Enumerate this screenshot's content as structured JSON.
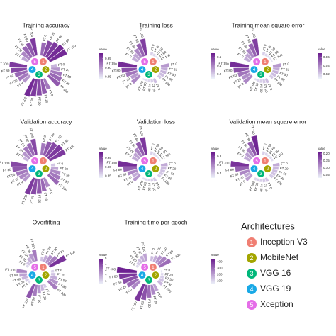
{
  "chart_data": [
    {
      "type": "radial_bar",
      "title": "Training accuracy",
      "colorbar_label": "value",
      "clim": [
        0.84,
        0.98
      ],
      "cticks": [
        {
          "value": 0.85,
          "label": "0.85"
        },
        {
          "value": 0.9,
          "label": "0.90"
        },
        {
          "value": 0.95,
          "label": "0.95"
        }
      ],
      "categories": [
        "FT 0",
        "FT 20",
        "FT 50",
        "FT 80",
        "FT 100"
      ],
      "series": [
        {
          "values": [
            0.93,
            0.95,
            0.96,
            0.97,
            0.97
          ]
        },
        {
          "values": [
            0.88,
            0.9,
            0.92,
            0.93,
            0.94
          ]
        },
        {
          "values": [
            0.92,
            0.94,
            0.95,
            0.96,
            0.97
          ]
        },
        {
          "values": [
            0.9,
            0.92,
            0.93,
            0.95,
            0.96
          ]
        },
        {
          "values": [
            0.89,
            0.91,
            0.93,
            0.94,
            0.96
          ]
        }
      ]
    },
    {
      "type": "radial_bar",
      "title": "Training loss",
      "colorbar_label": "value",
      "clim": [
        0.1,
        0.7
      ],
      "cticks": [
        0.2,
        0.4,
        0.6
      ],
      "categories": [
        "FT 0",
        "FT 20",
        "FT 50",
        "FT 80",
        "FT 100"
      ],
      "series": [
        {
          "values": [
            0.2,
            0.18,
            0.15,
            0.14,
            0.13
          ]
        },
        {
          "values": [
            0.35,
            0.3,
            0.28,
            0.25,
            0.22
          ]
        },
        {
          "values": [
            0.25,
            0.2,
            0.18,
            0.16,
            0.15
          ]
        },
        {
          "values": [
            0.4,
            0.35,
            0.45,
            0.55,
            0.65
          ]
        },
        {
          "values": [
            0.3,
            0.32,
            0.4,
            0.5,
            0.6
          ]
        }
      ]
    },
    {
      "type": "radial_bar",
      "title": "Training mean square error",
      "colorbar_label": "value",
      "clim": [
        0.01,
        0.07
      ],
      "cticks": [
        0.02,
        0.04,
        0.06
      ],
      "categories": [
        "FT 0",
        "FT 20",
        "FT 50",
        "FT 80",
        "FT 100"
      ],
      "series": [
        {
          "values": [
            0.02,
            0.018,
            0.016,
            0.015,
            0.014
          ]
        },
        {
          "values": [
            0.035,
            0.03,
            0.028,
            0.025,
            0.022
          ]
        },
        {
          "values": [
            0.025,
            0.022,
            0.02,
            0.018,
            0.016
          ]
        },
        {
          "values": [
            0.04,
            0.038,
            0.045,
            0.055,
            0.065
          ]
        },
        {
          "values": [
            0.03,
            0.032,
            0.04,
            0.05,
            0.06
          ]
        }
      ]
    },
    {
      "type": "radial_bar",
      "title": "Validation accuracy",
      "colorbar_label": "value",
      "clim": [
        0.84,
        0.98
      ],
      "cticks": [
        {
          "value": 0.85,
          "label": "0.85"
        },
        {
          "value": 0.9,
          "label": "0.90"
        },
        {
          "value": 0.95,
          "label": "0.95"
        }
      ],
      "categories": [
        "FT 0",
        "FT 20",
        "FT 50",
        "FT 80",
        "FT 100"
      ],
      "series": [
        {
          "values": [
            0.92,
            0.94,
            0.95,
            0.96,
            0.96
          ]
        },
        {
          "values": [
            0.87,
            0.89,
            0.91,
            0.92,
            0.93
          ]
        },
        {
          "values": [
            0.91,
            0.93,
            0.94,
            0.95,
            0.96
          ]
        },
        {
          "values": [
            0.9,
            0.91,
            0.92,
            0.94,
            0.95
          ]
        },
        {
          "values": [
            0.88,
            0.9,
            0.92,
            0.93,
            0.95
          ]
        }
      ]
    },
    {
      "type": "radial_bar",
      "title": "Validation loss",
      "colorbar_label": "value",
      "clim": [
        0.3,
        0.9
      ],
      "cticks": [
        0.4,
        0.6,
        0.8
      ],
      "categories": [
        "FT 0",
        "FT 20",
        "FT 50",
        "FT 80",
        "FT 100"
      ],
      "series": [
        {
          "values": [
            0.4,
            0.38,
            0.36,
            0.35,
            0.34
          ]
        },
        {
          "values": [
            0.5,
            0.46,
            0.44,
            0.42,
            0.4
          ]
        },
        {
          "values": [
            0.42,
            0.4,
            0.38,
            0.37,
            0.36
          ]
        },
        {
          "values": [
            0.55,
            0.5,
            0.6,
            0.7,
            0.85
          ]
        },
        {
          "values": [
            0.5,
            0.52,
            0.6,
            0.72,
            0.82
          ]
        }
      ]
    },
    {
      "type": "radial_bar",
      "title": "Validation mean square error",
      "colorbar_label": "value",
      "clim": [
        0.03,
        0.21
      ],
      "cticks": [
        0.05,
        {
          "value": 0.1,
          "label": "0.10"
        },
        0.15,
        {
          "value": 0.2,
          "label": "0.20"
        }
      ],
      "categories": [
        "FT 0",
        "FT 20",
        "FT 50",
        "FT 80",
        "FT 100"
      ],
      "series": [
        {
          "values": [
            0.06,
            0.055,
            0.05,
            0.05,
            0.048
          ]
        },
        {
          "values": [
            0.09,
            0.08,
            0.075,
            0.07,
            0.065
          ]
        },
        {
          "values": [
            0.07,
            0.065,
            0.06,
            0.058,
            0.055
          ]
        },
        {
          "values": [
            0.1,
            0.09,
            0.12,
            0.15,
            0.19
          ]
        },
        {
          "values": [
            0.09,
            0.1,
            0.12,
            0.16,
            0.2
          ]
        }
      ]
    },
    {
      "type": "radial_bar",
      "title": "Overfitting",
      "colorbar_label": "value",
      "clim": [
        0.5,
        5
      ],
      "cticks": [
        1,
        2,
        3,
        4,
        5
      ],
      "categories": [
        "FT 0",
        "FT 20",
        "FT 50",
        "FT 80",
        "FT 100"
      ],
      "series": [
        {
          "values": [
            1.5,
            2,
            2.5,
            3,
            4.5
          ]
        },
        {
          "values": [
            1.2,
            1.5,
            2,
            2.5,
            3
          ]
        },
        {
          "values": [
            1.4,
            1.8,
            2.4,
            3,
            3.8
          ]
        },
        {
          "values": [
            1,
            1.3,
            1.8,
            2.2,
            2.8
          ]
        },
        {
          "values": [
            1.1,
            1.4,
            1.9,
            2.4,
            3
          ]
        }
      ]
    },
    {
      "type": "radial_bar",
      "title": "Training time per epoch",
      "colorbar_label": "value",
      "clim": [
        50,
        450
      ],
      "cticks": [
        100,
        200,
        300,
        400
      ],
      "categories": [
        "FT 0",
        "FT 20",
        "FT 50",
        "FT 80",
        "FT 100"
      ],
      "series": [
        {
          "values": [
            150,
            180,
            220,
            260,
            300
          ]
        },
        {
          "values": [
            80,
            100,
            120,
            140,
            160
          ]
        },
        {
          "values": [
            200,
            250,
            300,
            350,
            400
          ]
        },
        {
          "values": [
            250,
            300,
            350,
            400,
            440
          ]
        },
        {
          "values": [
            100,
            120,
            150,
            180,
            200
          ]
        }
      ]
    }
  ],
  "colormap": [
    "#eef3fb",
    "#6a1b8e"
  ],
  "legend": {
    "title": "Architectures",
    "items": [
      {
        "number": "1",
        "name": "Inception V3",
        "color": "#f07f73"
      },
      {
        "number": "2",
        "name": "MobileNet",
        "color": "#a3a500"
      },
      {
        "number": "3",
        "name": "VGG 16",
        "color": "#00b77a"
      },
      {
        "number": "4",
        "name": "VGG 19",
        "color": "#19a9e6"
      },
      {
        "number": "5",
        "name": "Xception",
        "color": "#e56ee8"
      }
    ]
  }
}
